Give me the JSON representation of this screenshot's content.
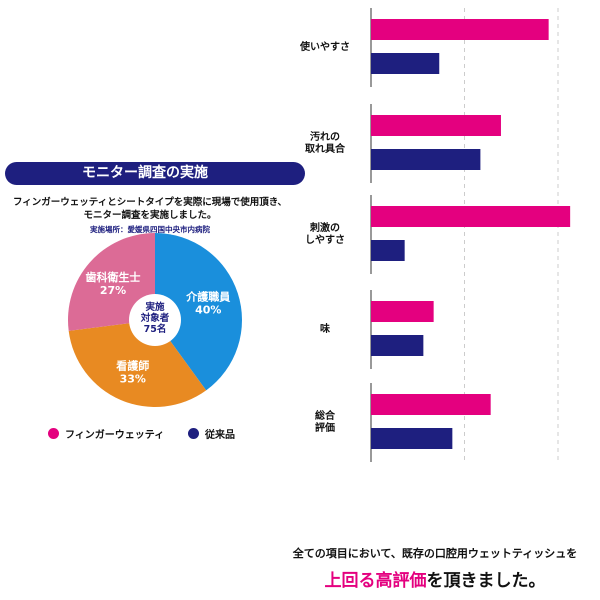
{
  "survey": {
    "title": "モニター調査の実施",
    "intro_line1": "フィンガーウェッティとシートタイプを実際に現場で使用頂き、",
    "intro_line2": "モニター調査を実施しました。",
    "location": "実施場所：愛媛県四国中央市内病院",
    "center_line1": "実施",
    "center_line2": "対象者",
    "center_line3": "75名"
  },
  "legend": {
    "finger": "フィンガーウェッティ",
    "conventional": "従来品"
  },
  "colors": {
    "finger": "#e4007f",
    "conventional": "#1e1f7f",
    "navy": "#1e1f7f"
  },
  "footer": {
    "line1": "全ての項目において、既存の口腔用ウェットティッシュを",
    "highlight": "上回る高評価",
    "rest": "を頂きました。"
  },
  "chart_data": [
    {
      "type": "pie",
      "title": "実施対象者 75名",
      "slices": [
        {
          "label": "介護職員",
          "value": 40,
          "pct": "40%",
          "color": "#1a8fdc"
        },
        {
          "label": "看護師",
          "value": 33,
          "pct": "33%",
          "color": "#e88a22"
        },
        {
          "label": "歯科衛生士",
          "value": 27,
          "pct": "27%",
          "color": "#dc6b96"
        }
      ]
    },
    {
      "type": "bar",
      "orientation": "horizontal",
      "categories": [
        [
          "使いやすさ"
        ],
        [
          "汚れの",
          "取れ具合"
        ],
        [
          "刺激の",
          "しやすさ"
        ],
        [
          "味"
        ],
        [
          "総合",
          "評価"
        ]
      ],
      "series": [
        {
          "name": "フィンガーウェッティ",
          "color": "#e4007f",
          "values": [
            1.9,
            1.39,
            2.13,
            0.67,
            1.28
          ]
        },
        {
          "name": "従来品",
          "color": "#1e1f7f",
          "values": [
            0.73,
            1.17,
            0.36,
            0.56,
            0.87
          ]
        }
      ],
      "xlim": [
        0,
        2.2
      ],
      "gridlines": [
        1,
        2
      ],
      "grid": true
    }
  ]
}
